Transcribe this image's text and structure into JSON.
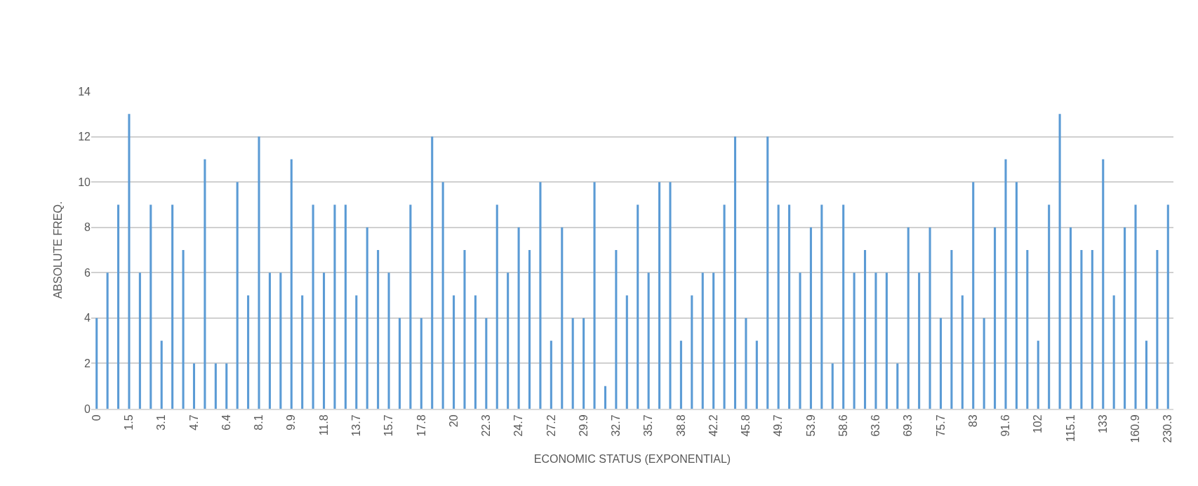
{
  "chart_data": {
    "type": "bar",
    "xlabel": "ECONOMIC STATUS (EXPONENTIAL)",
    "ylabel": "ABSOLUTE FREQ.",
    "categories": [
      "0",
      null,
      null,
      "1.5",
      null,
      null,
      "3.1",
      null,
      null,
      "4.7",
      null,
      null,
      "6.4",
      null,
      null,
      "8.1",
      null,
      null,
      "9.9",
      null,
      null,
      "11.8",
      null,
      null,
      "13.7",
      null,
      null,
      "15.7",
      null,
      null,
      "17.8",
      null,
      null,
      "20",
      null,
      null,
      "22.3",
      null,
      null,
      "24.7",
      null,
      null,
      "27.2",
      null,
      null,
      "29.9",
      null,
      null,
      "32.7",
      null,
      null,
      "35.7",
      null,
      null,
      "38.8",
      null,
      null,
      "42.2",
      null,
      null,
      "45.8",
      null,
      null,
      "49.7",
      null,
      null,
      "53.9",
      null,
      null,
      "58.6",
      null,
      null,
      "63.6",
      null,
      null,
      "69.3",
      null,
      null,
      "75.7",
      null,
      null,
      "83",
      null,
      null,
      "91.6",
      null,
      null,
      "102",
      null,
      null,
      "115.1",
      null,
      null,
      "133",
      null,
      null,
      "160.9",
      null,
      null,
      "230.3"
    ],
    "values": [
      4,
      6,
      9,
      13,
      6,
      9,
      3,
      9,
      7,
      2,
      11,
      2,
      2,
      10,
      5,
      12,
      6,
      6,
      11,
      5,
      9,
      6,
      9,
      9,
      5,
      8,
      7,
      6,
      4,
      9,
      4,
      12,
      10,
      5,
      7,
      5,
      4,
      9,
      6,
      8,
      7,
      10,
      3,
      8,
      4,
      4,
      10,
      1,
      7,
      5,
      9,
      6,
      10,
      10,
      3,
      5,
      6,
      6,
      9,
      12,
      4,
      3,
      12,
      9,
      9,
      6,
      8,
      9,
      2,
      9,
      6,
      7,
      6,
      6,
      2,
      8,
      6,
      8,
      4,
      7,
      5,
      10,
      4,
      8,
      11,
      10,
      7,
      3,
      9,
      13,
      8,
      7,
      7,
      11,
      5,
      8,
      9,
      3,
      7,
      9
    ],
    "color": "#5b9bd5",
    "ylim": [
      0,
      14
    ],
    "yticks": [
      0,
      2,
      4,
      6,
      8,
      10,
      12,
      14
    ],
    "grid": "y",
    "legend": false
  }
}
